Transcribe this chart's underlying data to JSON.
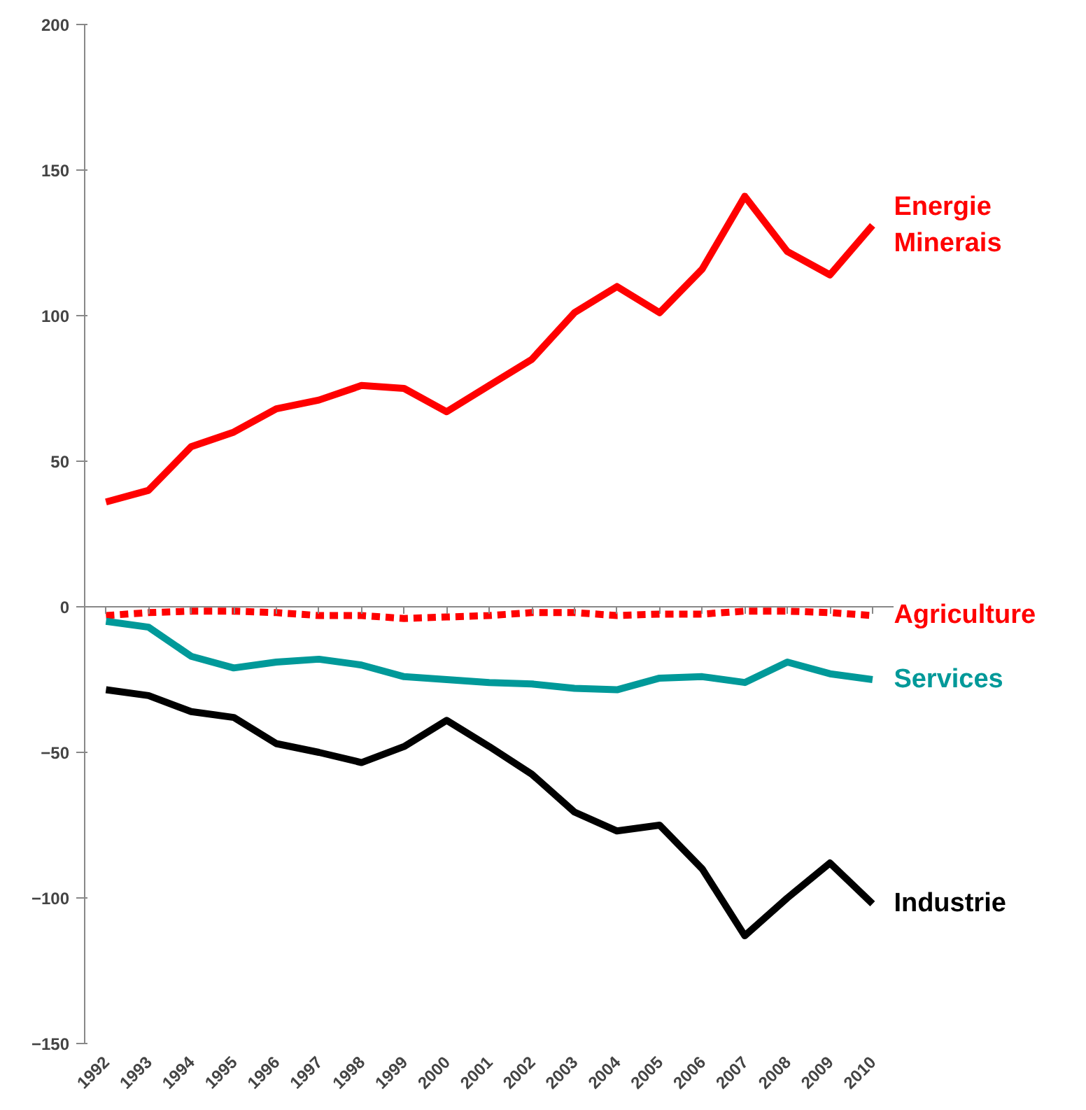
{
  "chart_data": {
    "type": "line",
    "categories": [
      "1992",
      "1993",
      "1994",
      "1995",
      "1996",
      "1997",
      "1998",
      "1999",
      "2000",
      "2001",
      "2002",
      "2003",
      "2004",
      "2005",
      "2006",
      "2007",
      "2008",
      "2009",
      "2010"
    ],
    "ylim": [
      -150,
      200
    ],
    "yticks": [
      -150,
      -100,
      -50,
      0,
      50,
      100,
      150,
      200
    ],
    "series": [
      {
        "name": "Energie\nMinerais",
        "color": "#ff0000",
        "line_style": "solid",
        "values": [
          36,
          40,
          55,
          60,
          68,
          71,
          76,
          75,
          67,
          76,
          85,
          101,
          110,
          101,
          116,
          141,
          122,
          114,
          131
        ]
      },
      {
        "name": "Agriculture",
        "color": "#ff0000",
        "line_style": "dashed",
        "values": [
          -3,
          -2,
          -1.5,
          -1.5,
          -2,
          -3,
          -3,
          -4,
          -3.5,
          -3,
          -2,
          -2,
          -3,
          -2.5,
          -2.5,
          -1.5,
          -1.5,
          -2,
          -3
        ]
      },
      {
        "name": "Services",
        "color": "#009999",
        "line_style": "solid",
        "values": [
          -5,
          -7,
          -17,
          -21,
          -19,
          -18,
          -20,
          -24,
          -25,
          -26,
          -26.5,
          -28,
          -28.5,
          -24.5,
          -24,
          -26,
          -19,
          -23,
          -25
        ]
      },
      {
        "name": "Industrie",
        "color": "#000000",
        "line_style": "solid",
        "values": [
          -28.5,
          -30.5,
          -36,
          -38,
          -47,
          -50,
          -53.5,
          -48,
          -39,
          -48,
          -57.5,
          -70.5,
          -77,
          -75,
          -90,
          -113,
          -100,
          -88,
          -102
        ]
      }
    ]
  }
}
